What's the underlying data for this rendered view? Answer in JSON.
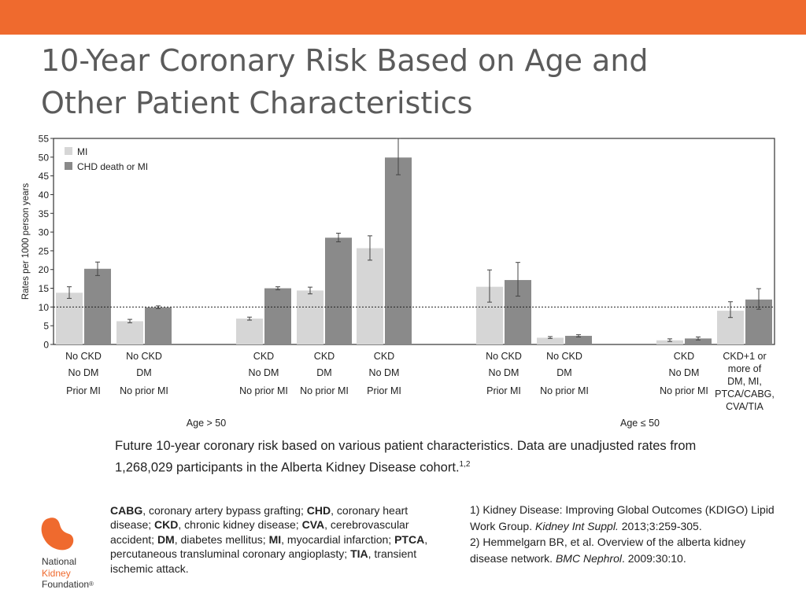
{
  "slide": {
    "title_line1": "10-Year Coronary Risk Based on Age and",
    "title_line2": "Other Patient Characteristics"
  },
  "colors": {
    "accent": "#ef6a2e",
    "title": "#5b5b5b",
    "mi": "#d6d6d6",
    "chd": "#8a8a8a"
  },
  "chart_data": {
    "type": "bar",
    "ylabel": "Rates per 1000 person years",
    "ylim": [
      0,
      55
    ],
    "yticks": [
      0,
      5,
      10,
      15,
      20,
      25,
      30,
      35,
      40,
      45,
      50,
      55
    ],
    "reference_line": 10,
    "legend": [
      "MI",
      "CHD death or MI"
    ],
    "legend_position": "top-left",
    "groups": [
      {
        "label": "Age > 50",
        "categories": [
          0,
          1,
          2,
          3,
          4
        ]
      },
      {
        "label": "Age ≤ 50",
        "categories": [
          5,
          6,
          7,
          8
        ]
      }
    ],
    "categories": [
      {
        "lines": [
          "No CKD",
          "No DM",
          "Prior MI"
        ]
      },
      {
        "lines": [
          "No CKD",
          "DM",
          "No prior MI"
        ]
      },
      {
        "lines": [
          "CKD",
          "No DM",
          "No prior MI"
        ]
      },
      {
        "lines": [
          "CKD",
          "DM",
          "No prior MI"
        ]
      },
      {
        "lines": [
          "CKD",
          "No DM",
          "Prior MI"
        ]
      },
      {
        "lines": [
          "No CKD",
          "No DM",
          "Prior MI"
        ]
      },
      {
        "lines": [
          "No CKD",
          "DM",
          "No prior MI"
        ]
      },
      {
        "lines": [
          "CKD",
          "No DM",
          "No prior MI"
        ]
      },
      {
        "lines": [
          "CKD+1 or",
          "more of",
          "DM, MI,",
          "PTCA/CABG,",
          "CVA/TIA"
        ]
      }
    ],
    "series": [
      {
        "name": "MI",
        "values": [
          13.8,
          6.2,
          6.9,
          14.4,
          25.7,
          15.4,
          1.8,
          1.1,
          9.0
        ],
        "errors": [
          [
            12.3,
            15.4
          ],
          [
            5.8,
            6.7
          ],
          [
            6.5,
            7.3
          ],
          [
            13.5,
            15.3
          ],
          [
            22.5,
            29.0
          ],
          [
            11.3,
            19.9
          ],
          [
            1.6,
            2.1
          ],
          [
            0.8,
            1.5
          ],
          [
            7.2,
            11.4
          ]
        ]
      },
      {
        "name": "CHD death or MI",
        "values": [
          20.2,
          9.9,
          15.0,
          28.5,
          49.9,
          17.2,
          2.3,
          1.6,
          12.0
        ],
        "errors": [
          [
            18.4,
            22.0
          ],
          [
            9.6,
            10.3
          ],
          [
            14.6,
            15.4
          ],
          [
            27.4,
            29.7
          ],
          [
            45.3,
            55.0
          ],
          [
            12.9,
            21.9
          ],
          [
            2.0,
            2.6
          ],
          [
            1.2,
            2.0
          ],
          [
            9.4,
            14.9
          ]
        ]
      }
    ]
  },
  "caption": {
    "text": "Future 10-year coronary risk based on various patient characteristics. Data are unadjusted rates from 1,268,029 participants in the Alberta Kidney Disease cohort.",
    "sup": "1,2"
  },
  "abbreviations": [
    {
      "term": "CABG",
      "def": ", coronary artery bypass grafting; "
    },
    {
      "term": "CHD",
      "def": ", coronary heart disease; "
    },
    {
      "term": "CKD",
      "def": ", chronic kidney disease; "
    },
    {
      "term": "CVA",
      "def": ", cerebrovascular accident; "
    },
    {
      "term": "DM",
      "def": ", diabetes mellitus; "
    },
    {
      "term": "MI",
      "def": ", myocardial infarction; "
    },
    {
      "term": "PTCA",
      "def": ", percutaneous transluminal coronary angioplasty; "
    },
    {
      "term": "TIA",
      "def": ", transient ischemic attack."
    }
  ],
  "references": {
    "ref1_pre": "1) Kidney Disease: Improving Global Outcomes (KDIGO) Lipid Work Group. ",
    "ref1_journal": "Kidney Int Suppl.",
    "ref1_post": " 2013;3:259-305.",
    "ref2_pre": "2) Hemmelgarn BR, et al. Overview of the alberta kidney disease network. ",
    "ref2_journal": "BMC Nephrol",
    "ref2_post": ". 2009:30:10."
  },
  "logo": {
    "line1": "National",
    "line2": "Kidney",
    "line3": "Foundation",
    "reg": "®"
  }
}
